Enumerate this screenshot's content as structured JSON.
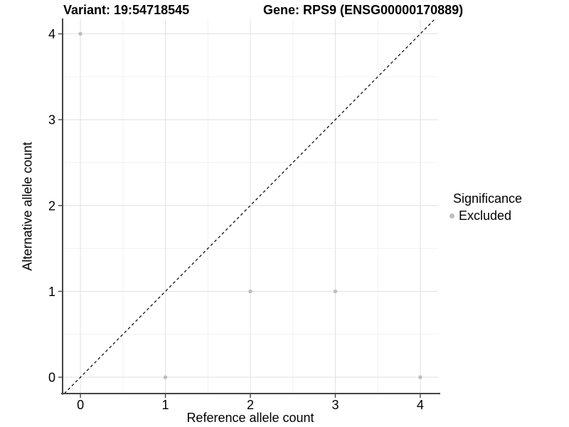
{
  "titles": {
    "left": "Variant: 19:54718545",
    "right": "Gene: RPS9 (ENSG00000170889)"
  },
  "chart_data": {
    "type": "scatter",
    "title": "Variant: 19:54718545   Gene: RPS9 (ENSG00000170889)",
    "xlabel": "Reference allele count",
    "ylabel": "Alternative allele count",
    "xlim": [
      -0.21,
      4.21
    ],
    "ylim": [
      -0.19,
      4.17
    ],
    "xticks": [
      "0",
      "1",
      "2",
      "3",
      "4"
    ],
    "yticks": [
      "0",
      "1",
      "2",
      "3",
      "4"
    ],
    "xtick_values": [
      0,
      1,
      2,
      3,
      4
    ],
    "ytick_values": [
      0,
      1,
      2,
      3,
      4
    ],
    "grid": {
      "major": true,
      "minor": true
    },
    "identity_line": {
      "show": true,
      "style": "dashed",
      "equation": "y = x",
      "color": "#000000"
    },
    "series": [
      {
        "name": "Excluded",
        "color": "#bdbdbd",
        "points": [
          [
            0,
            4
          ],
          [
            1,
            0
          ],
          [
            2,
            1
          ],
          [
            3,
            1
          ],
          [
            4,
            0
          ]
        ]
      }
    ],
    "legend": {
      "title": "Significance",
      "position": "right",
      "items": [
        {
          "label": "Excluded",
          "color": "#bdbdbd"
        }
      ]
    }
  },
  "colors": {
    "background": "#ffffff",
    "axis_line": "#454545",
    "tick_mark": "#454545",
    "grid_major": "#e3e3e3",
    "grid_minor": "#f0f0f0",
    "point": "#bdbdbd",
    "identity_line": "#000000",
    "text": "#000000"
  }
}
